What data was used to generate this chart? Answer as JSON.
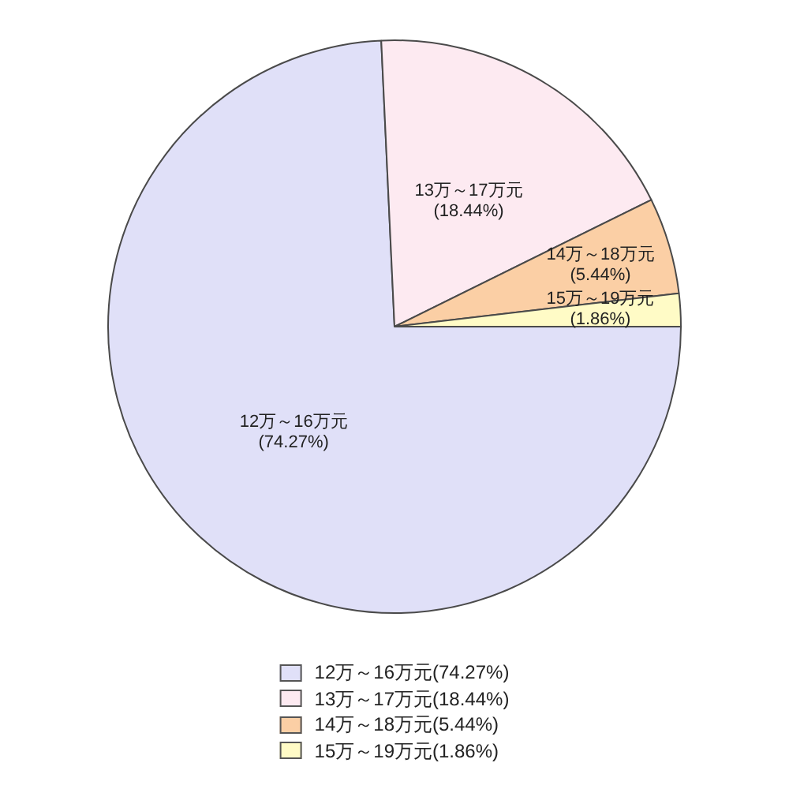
{
  "chart_data": {
    "type": "pie",
    "categories": [
      "12万～16万元",
      "13万～17万元",
      "14万～18万元",
      "15万～19万元"
    ],
    "values": [
      74.27,
      18.44,
      5.44,
      1.86
    ],
    "value_labels": [
      "(74.27%)",
      "(18.44%)",
      "(5.44%)",
      "(1.86%)"
    ],
    "colors": [
      "#e0e0f8",
      "#fdeaf1",
      "#fbcfa5",
      "#fffbc6"
    ],
    "legend": "bottom"
  }
}
